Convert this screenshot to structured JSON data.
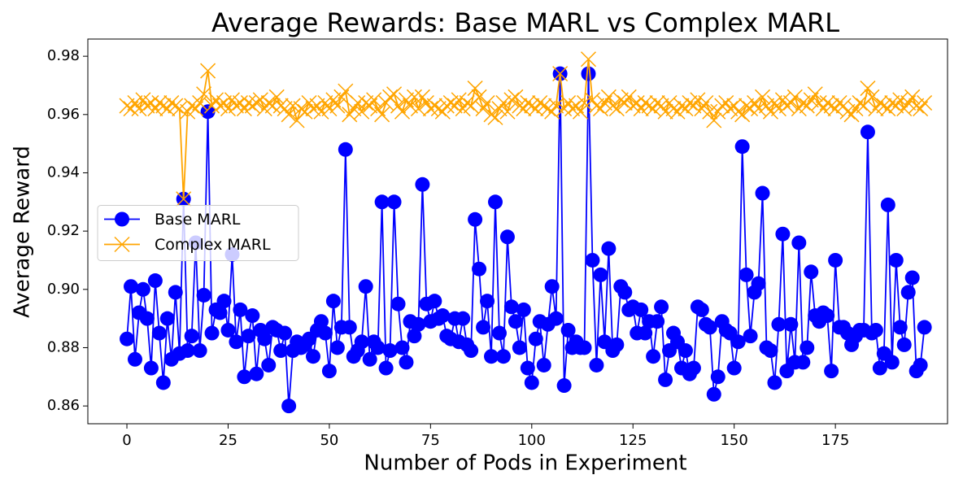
{
  "chart_data": {
    "type": "line",
    "title": "Average Rewards: Base MARL vs Complex MARL",
    "xlabel": "Number of Pods in Experiment",
    "ylabel": "Average Reward",
    "legend": "center left",
    "grid": false,
    "xlim": [
      -9.65,
      202.7
    ],
    "ylim": [
      0.8539,
      0.9859
    ],
    "xticks": [
      0,
      25,
      50,
      75,
      100,
      125,
      150,
      175
    ],
    "yticks": [
      0.86,
      0.88,
      {
        "value": 0.9,
        "label": "0.90"
      },
      0.92,
      0.94,
      0.96,
      0.98
    ],
    "x": [
      0,
      1,
      2,
      3,
      4,
      5,
      6,
      7,
      8,
      9,
      10,
      11,
      12,
      13,
      14,
      15,
      16,
      17,
      18,
      19,
      20,
      21,
      22,
      23,
      24,
      25,
      26,
      27,
      28,
      29,
      30,
      31,
      32,
      33,
      34,
      35,
      36,
      37,
      38,
      39,
      40,
      41,
      42,
      43,
      44,
      45,
      46,
      47,
      48,
      49,
      50,
      51,
      52,
      53,
      54,
      55,
      56,
      57,
      58,
      59,
      60,
      61,
      62,
      63,
      64,
      65,
      66,
      67,
      68,
      69,
      70,
      71,
      72,
      73,
      74,
      75,
      76,
      77,
      78,
      79,
      80,
      81,
      82,
      83,
      84,
      85,
      86,
      87,
      88,
      89,
      90,
      91,
      92,
      93,
      94,
      95,
      96,
      97,
      98,
      99,
      100,
      101,
      102,
      103,
      104,
      105,
      106,
      107,
      108,
      109,
      110,
      111,
      112,
      113,
      114,
      115,
      116,
      117,
      118,
      119,
      120,
      121,
      122,
      123,
      124,
      125,
      126,
      127,
      128,
      129,
      130,
      131,
      132,
      133,
      134,
      135,
      136,
      137,
      138,
      139,
      140,
      141,
      142,
      143,
      144,
      145,
      146,
      147,
      148,
      149,
      150,
      151,
      152,
      153,
      154,
      155,
      156,
      157,
      158,
      159,
      160,
      161,
      162,
      163,
      164,
      165,
      166,
      167,
      168,
      169,
      170,
      171,
      172,
      173,
      174,
      175,
      176,
      177,
      178,
      179,
      180,
      181,
      182,
      183,
      184,
      185,
      186,
      187,
      188,
      189,
      190,
      191,
      192,
      193,
      194,
      195,
      196,
      197
    ],
    "series": [
      {
        "name": "Base MARL",
        "color": "#0000ff",
        "marker": "o",
        "values": [
          0.883,
          0.901,
          0.876,
          0.892,
          0.9,
          0.89,
          0.873,
          0.903,
          0.885,
          0.868,
          0.89,
          0.876,
          0.899,
          0.878,
          0.931,
          0.879,
          0.884,
          0.916,
          0.879,
          0.898,
          0.961,
          0.885,
          0.893,
          0.892,
          0.896,
          0.886,
          0.912,
          0.882,
          0.893,
          0.87,
          0.884,
          0.891,
          0.871,
          0.886,
          0.883,
          0.874,
          0.887,
          0.886,
          0.879,
          0.885,
          0.86,
          0.879,
          0.882,
          0.88,
          0.881,
          0.883,
          0.877,
          0.886,
          0.889,
          0.885,
          0.872,
          0.896,
          0.88,
          0.887,
          0.948,
          0.887,
          0.877,
          0.879,
          0.882,
          0.901,
          0.876,
          0.882,
          0.88,
          0.93,
          0.873,
          0.879,
          0.93,
          0.895,
          0.88,
          0.875,
          0.889,
          0.884,
          0.888,
          0.936,
          0.895,
          0.889,
          0.896,
          0.89,
          0.891,
          0.884,
          0.883,
          0.89,
          0.882,
          0.89,
          0.881,
          0.879,
          0.924,
          0.907,
          0.887,
          0.896,
          0.877,
          0.93,
          0.885,
          0.877,
          0.918,
          0.894,
          0.889,
          0.88,
          0.893,
          0.873,
          0.868,
          0.883,
          0.889,
          0.874,
          0.888,
          0.901,
          0.89,
          0.974,
          0.867,
          0.886,
          0.88,
          0.882,
          0.88,
          0.88,
          0.974,
          0.91,
          0.874,
          0.905,
          0.882,
          0.914,
          0.879,
          0.881,
          0.901,
          0.899,
          0.893,
          0.894,
          0.885,
          0.893,
          0.885,
          0.889,
          0.877,
          0.889,
          0.894,
          0.869,
          0.879,
          0.885,
          0.882,
          0.873,
          0.879,
          0.871,
          0.873,
          0.894,
          0.893,
          0.888,
          0.887,
          0.864,
          0.87,
          0.889,
          0.886,
          0.885,
          0.873,
          0.882,
          0.949,
          0.905,
          0.884,
          0.899,
          0.902,
          0.933,
          0.88,
          0.879,
          0.868,
          0.888,
          0.919,
          0.872,
          0.888,
          0.875,
          0.916,
          0.875,
          0.88,
          0.906,
          0.891,
          0.889,
          0.892,
          0.891,
          0.872,
          0.91,
          0.887,
          0.887,
          0.885,
          0.881,
          0.884,
          0.886,
          0.886,
          0.954,
          0.885,
          0.886,
          0.873,
          0.878,
          0.929,
          0.875,
          0.91,
          0.887,
          0.881,
          0.899,
          0.904,
          0.872,
          0.874,
          0.887
        ]
      },
      {
        "name": "Complex MARL",
        "color": "#ffa500",
        "marker": "x",
        "values": [
          0.963,
          0.962,
          0.964,
          0.962,
          0.965,
          0.963,
          0.964,
          0.962,
          0.964,
          0.963,
          0.962,
          0.964,
          0.963,
          0.962,
          0.931,
          0.961,
          0.963,
          0.962,
          0.964,
          0.967,
          0.975,
          0.963,
          0.965,
          0.963,
          0.964,
          0.962,
          0.965,
          0.963,
          0.964,
          0.962,
          0.964,
          0.963,
          0.964,
          0.965,
          0.962,
          0.964,
          0.963,
          0.966,
          0.963,
          0.962,
          0.96,
          0.963,
          0.958,
          0.962,
          0.961,
          0.964,
          0.962,
          0.963,
          0.961,
          0.964,
          0.962,
          0.965,
          0.963,
          0.966,
          0.968,
          0.96,
          0.962,
          0.964,
          0.961,
          0.964,
          0.963,
          0.965,
          0.962,
          0.96,
          0.964,
          0.966,
          0.967,
          0.963,
          0.961,
          0.965,
          0.963,
          0.966,
          0.962,
          0.966,
          0.964,
          0.962,
          0.963,
          0.962,
          0.961,
          0.963,
          0.964,
          0.963,
          0.965,
          0.962,
          0.964,
          0.963,
          0.969,
          0.966,
          0.962,
          0.964,
          0.96,
          0.959,
          0.962,
          0.964,
          0.961,
          0.965,
          0.966,
          0.963,
          0.962,
          0.964,
          0.963,
          0.962,
          0.964,
          0.963,
          0.962,
          0.961,
          0.963,
          0.974,
          0.962,
          0.964,
          0.962,
          0.963,
          0.961,
          0.964,
          0.979,
          0.965,
          0.963,
          0.962,
          0.964,
          0.966,
          0.963,
          0.962,
          0.965,
          0.964,
          0.966,
          0.963,
          0.964,
          0.962,
          0.964,
          0.963,
          0.962,
          0.964,
          0.963,
          0.961,
          0.964,
          0.962,
          0.961,
          0.963,
          0.962,
          0.964,
          0.963,
          0.965,
          0.962,
          0.964,
          0.961,
          0.958,
          0.961,
          0.963,
          0.964,
          0.962,
          0.963,
          0.961,
          0.96,
          0.963,
          0.962,
          0.964,
          0.962,
          0.966,
          0.963,
          0.961,
          0.964,
          0.962,
          0.965,
          0.963,
          0.964,
          0.966,
          0.962,
          0.964,
          0.963,
          0.965,
          0.967,
          0.964,
          0.962,
          0.964,
          0.963,
          0.962,
          0.964,
          0.963,
          0.961,
          0.96,
          0.962,
          0.964,
          0.963,
          0.969,
          0.966,
          0.962,
          0.964,
          0.963,
          0.962,
          0.964,
          0.963,
          0.965,
          0.962,
          0.964,
          0.966,
          0.963,
          0.962,
          0.964
        ]
      }
    ]
  }
}
